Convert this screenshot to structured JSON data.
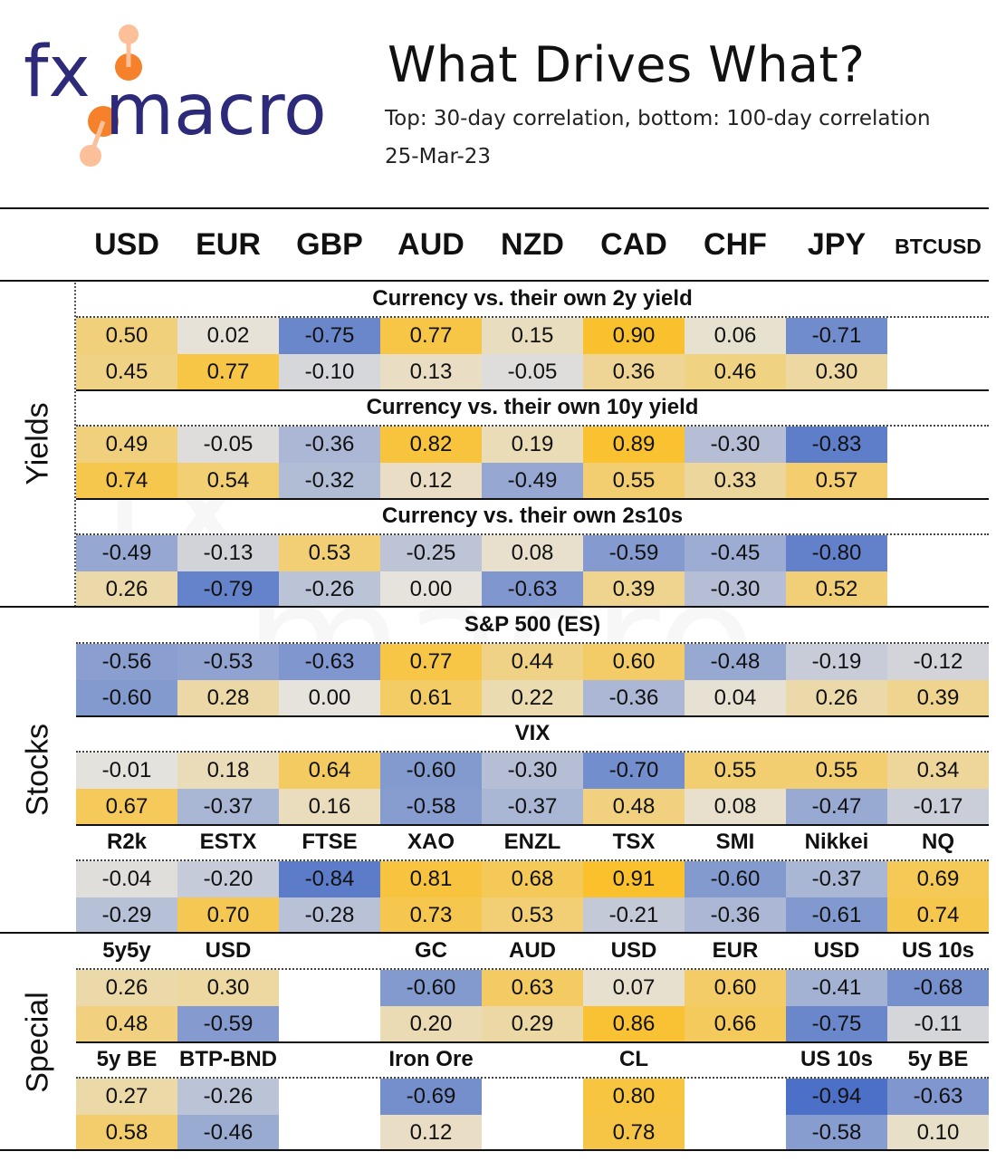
{
  "header": {
    "logo_text_a": "fx",
    "logo_text_b": "macro",
    "title": "What Drives What?",
    "subtitle": "Top: 30-day correlation, bottom: 100-day correlation",
    "date": "25-Mar-23"
  },
  "columns": [
    "USD",
    "EUR",
    "GBP",
    "AUD",
    "NZD",
    "CAD",
    "CHF",
    "JPY",
    "BTCUSD"
  ],
  "groups": {
    "yields": "Yields",
    "stocks": "Stocks",
    "special": "Special"
  },
  "colors": {
    "positive_max": "#fbbf24",
    "negative_max": "#4a6fc7",
    "neutral": "#e6e3dc"
  },
  "chart_data": {
    "type": "heatmap",
    "title": "What Drives What?",
    "subtitle": "Top: 30-day correlation, bottom: 100-day correlation",
    "columns": [
      "USD",
      "EUR",
      "GBP",
      "AUD",
      "NZD",
      "CAD",
      "CHF",
      "JPY",
      "BTCUSD"
    ],
    "value_range": [
      -1,
      1
    ],
    "blocks": [
      {
        "group": "Yields",
        "title": "Currency vs. their own 2y yield",
        "labels": null,
        "top": [
          "0.50",
          "0.02",
          "-0.75",
          "0.77",
          "0.15",
          "0.90",
          "0.06",
          "-0.71",
          null
        ],
        "bottom": [
          "0.45",
          "0.77",
          "-0.10",
          "0.13",
          "-0.05",
          "0.36",
          "0.46",
          "0.30",
          null
        ]
      },
      {
        "group": "Yields",
        "title": "Currency vs. their own 10y yield",
        "labels": null,
        "top": [
          "0.49",
          "-0.05",
          "-0.36",
          "0.82",
          "0.19",
          "0.89",
          "-0.30",
          "-0.83",
          null
        ],
        "bottom": [
          "0.74",
          "0.54",
          "-0.32",
          "0.12",
          "-0.49",
          "0.55",
          "0.33",
          "0.57",
          null
        ]
      },
      {
        "group": "Yields",
        "title": "Currency vs. their own 2s10s",
        "labels": null,
        "top": [
          "-0.49",
          "-0.13",
          "0.53",
          "-0.25",
          "0.08",
          "-0.59",
          "-0.45",
          "-0.80",
          null
        ],
        "bottom": [
          "0.26",
          "-0.79",
          "-0.26",
          "0.00",
          "-0.63",
          "0.39",
          "-0.30",
          "0.52",
          null
        ]
      },
      {
        "group": "Stocks",
        "title": "S&P 500 (ES)",
        "labels": null,
        "top": [
          "-0.56",
          "-0.53",
          "-0.63",
          "0.77",
          "0.44",
          "0.60",
          "-0.48",
          "-0.19",
          "-0.12"
        ],
        "bottom": [
          "-0.60",
          "0.28",
          "0.00",
          "0.61",
          "0.22",
          "-0.36",
          "0.04",
          "0.26",
          "0.39"
        ]
      },
      {
        "group": "Stocks",
        "title": "VIX",
        "labels": null,
        "top": [
          "-0.01",
          "0.18",
          "0.64",
          "-0.60",
          "-0.30",
          "-0.70",
          "0.55",
          "0.55",
          "0.34"
        ],
        "bottom": [
          "0.67",
          "-0.37",
          "0.16",
          "-0.58",
          "-0.37",
          "0.48",
          "0.08",
          "-0.47",
          "-0.17"
        ]
      },
      {
        "group": "Stocks",
        "title": null,
        "labels": [
          "R2k",
          "ESTX",
          "FTSE",
          "XAO",
          "ENZL",
          "TSX",
          "SMI",
          "Nikkei",
          "NQ"
        ],
        "top": [
          "-0.04",
          "-0.20",
          "-0.84",
          "0.81",
          "0.68",
          "0.91",
          "-0.60",
          "-0.37",
          "0.69"
        ],
        "bottom": [
          "-0.29",
          "0.70",
          "-0.28",
          "0.73",
          "0.53",
          "-0.21",
          "-0.36",
          "-0.61",
          "0.74"
        ]
      },
      {
        "group": "Special",
        "title": null,
        "labels": [
          "5y5y",
          "USD",
          null,
          "GC",
          "AUD",
          "USD",
          "EUR",
          "USD",
          "US 10s"
        ],
        "top": [
          "0.26",
          "0.30",
          null,
          "-0.60",
          "0.63",
          "0.07",
          "0.60",
          "-0.41",
          "-0.68"
        ],
        "bottom": [
          "0.48",
          "-0.59",
          null,
          "0.20",
          "0.29",
          "0.86",
          "0.66",
          "-0.75",
          "-0.11"
        ]
      },
      {
        "group": "Special",
        "title": null,
        "labels": [
          "5y BE",
          "BTP-BND",
          null,
          "Iron Ore",
          null,
          "CL",
          null,
          "US 10s",
          "5y BE"
        ],
        "top": [
          "0.27",
          "-0.26",
          null,
          "-0.69",
          null,
          "0.80",
          null,
          "-0.94",
          "-0.63"
        ],
        "bottom": [
          "0.58",
          "-0.46",
          null,
          "0.12",
          null,
          "0.78",
          null,
          "-0.58",
          "0.10"
        ]
      }
    ]
  }
}
